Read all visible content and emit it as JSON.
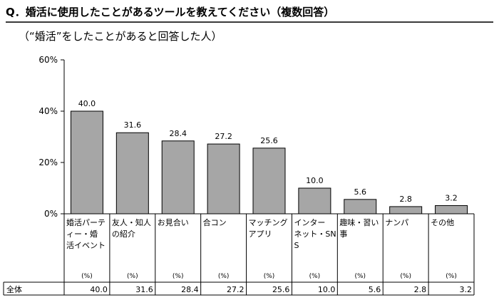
{
  "title": "Q．婚活に使用したことがあるツールを教えてください（複数回答）",
  "subtitle": "（“婚活”をしたことがあると回答した人）",
  "chart_data": {
    "type": "bar",
    "title": "",
    "xlabel": "",
    "ylabel": "",
    "ylim": [
      0,
      60
    ],
    "yticks": [
      "0%",
      "20%",
      "40%",
      "60%"
    ],
    "categories": [
      [
        "婚活パーテ",
        "ィー・婚",
        "活イベント"
      ],
      [
        "友人・知人",
        "の紹介"
      ],
      [
        "お見合い"
      ],
      [
        "合コン"
      ],
      [
        "マッチング",
        "アプリ"
      ],
      [
        "インター",
        "ネット・SN",
        "S"
      ],
      [
        "趣味・習い",
        "事"
      ],
      [
        "ナンパ"
      ],
      [
        "その他"
      ]
    ],
    "values": [
      40.0,
      31.6,
      28.4,
      27.2,
      25.6,
      10.0,
      5.6,
      2.8,
      3.2
    ],
    "value_labels": [
      "40.0",
      "31.6",
      "28.4",
      "27.2",
      "25.6",
      "10.0",
      "5.6",
      "2.8",
      "3.2"
    ],
    "unit_label": "(%)",
    "row_label": "全体",
    "bar_color": "#a6a6a6"
  }
}
